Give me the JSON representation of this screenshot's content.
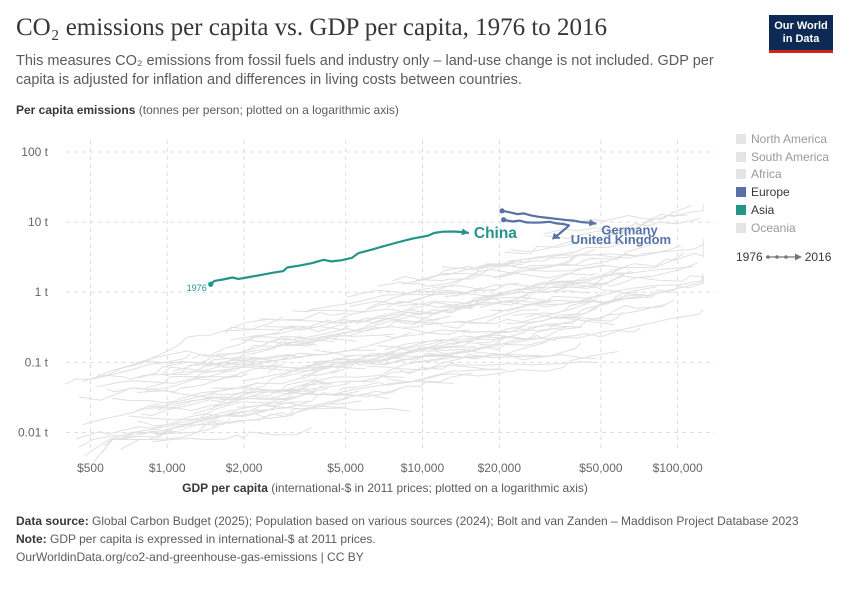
{
  "header": {
    "title": "CO₂ emissions per capita vs. GDP per capita, 1976 to 2016",
    "subtitle": "This measures CO₂ emissions from fossil fuels and industry only – land-use change is not included. GDP per capita is adjusted for inflation and differences in living costs between countries.",
    "logo_line1": "Our World",
    "logo_line2": "in Data"
  },
  "axes": {
    "y_title": "Per capita emissions",
    "y_note": "(tonnes per person; plotted on a logarithmic axis)",
    "x_title": "GDP per capita",
    "x_note": "(international-$ in 2011 prices; plotted on a logarithmic axis)"
  },
  "legend": {
    "items": [
      {
        "label": "North America",
        "color": "#e4e4e4",
        "active": false
      },
      {
        "label": "South America",
        "color": "#e4e4e4",
        "active": false
      },
      {
        "label": "Africa",
        "color": "#e4e4e4",
        "active": false
      },
      {
        "label": "Europe",
        "color": "#5772a7",
        "active": true
      },
      {
        "label": "Asia",
        "color": "#24948b",
        "active": true
      },
      {
        "label": "Oceania",
        "color": "#e4e4e4",
        "active": false
      }
    ],
    "timeline_start": "1976",
    "timeline_end": "2016"
  },
  "chart_data": {
    "type": "scatter",
    "x_scale": "log",
    "y_scale": "log",
    "xlim": [
      380,
      140000
    ],
    "ylim": [
      0.006,
      220
    ],
    "x_ticks": [
      {
        "value": 500,
        "label": "$500"
      },
      {
        "value": 1000,
        "label": "$1,000"
      },
      {
        "value": 2000,
        "label": "$2,000"
      },
      {
        "value": 5000,
        "label": "$5,000"
      },
      {
        "value": 10000,
        "label": "$10,000"
      },
      {
        "value": 20000,
        "label": "$20,000"
      },
      {
        "value": 50000,
        "label": "$50,000"
      },
      {
        "value": 100000,
        "label": "$100,000"
      }
    ],
    "y_ticks": [
      {
        "value": 0.01,
        "label": "0.01 t"
      },
      {
        "value": 0.1,
        "label": "0.1 t"
      },
      {
        "value": 1,
        "label": "1 t"
      },
      {
        "value": 10,
        "label": "10 t"
      },
      {
        "value": 100,
        "label": "100 t"
      }
    ],
    "grid": true,
    "legend_position": "right",
    "series": [
      {
        "name": "China",
        "color": "#24948b",
        "start_label": "1976",
        "points": [
          [
            1480,
            1.3
          ],
          [
            1530,
            1.45
          ],
          [
            1650,
            1.52
          ],
          [
            1800,
            1.62
          ],
          [
            1900,
            1.55
          ],
          [
            2050,
            1.62
          ],
          [
            2300,
            1.75
          ],
          [
            2600,
            1.9
          ],
          [
            2850,
            2.0
          ],
          [
            2950,
            2.25
          ],
          [
            3300,
            2.4
          ],
          [
            3700,
            2.6
          ],
          [
            4100,
            2.9
          ],
          [
            4400,
            2.75
          ],
          [
            4800,
            2.85
          ],
          [
            5300,
            3.1
          ],
          [
            5600,
            3.6
          ],
          [
            6400,
            4.1
          ],
          [
            7000,
            4.5
          ],
          [
            7700,
            4.95
          ],
          [
            8400,
            5.4
          ],
          [
            9100,
            5.8
          ],
          [
            9800,
            6.1
          ],
          [
            10500,
            6.4
          ],
          [
            11100,
            7.0
          ],
          [
            12000,
            7.3
          ],
          [
            13200,
            7.35
          ],
          [
            14500,
            7.2
          ],
          [
            15200,
            7.0
          ]
        ]
      },
      {
        "name": "Germany",
        "color": "#5772a7",
        "points": [
          [
            20500,
            14.5
          ],
          [
            22000,
            13.8
          ],
          [
            23500,
            13.0
          ],
          [
            25000,
            13.3
          ],
          [
            26500,
            12.5
          ],
          [
            28500,
            11.9
          ],
          [
            31000,
            11.5
          ],
          [
            33000,
            11.2
          ],
          [
            36000,
            10.8
          ],
          [
            39000,
            10.5
          ],
          [
            42000,
            10.0
          ],
          [
            45000,
            9.8
          ],
          [
            48000,
            9.5
          ]
        ]
      },
      {
        "name": "United Kingdom",
        "color": "#5772a7",
        "points": [
          [
            20800,
            10.8
          ],
          [
            22500,
            10.2
          ],
          [
            24000,
            10.5
          ],
          [
            25500,
            9.9
          ],
          [
            27500,
            9.8
          ],
          [
            29500,
            9.9
          ],
          [
            31500,
            10.1
          ],
          [
            33500,
            9.6
          ],
          [
            35500,
            9.4
          ],
          [
            37500,
            9.0
          ],
          [
            36500,
            8.2
          ],
          [
            35000,
            7.2
          ],
          [
            34000,
            6.6
          ],
          [
            33000,
            6.2
          ],
          [
            34500,
            5.9
          ]
        ]
      }
    ]
  },
  "footer": {
    "source_label": "Data source:",
    "source_text": "Global Carbon Budget (2025); Population based on various sources (2024); Bolt and van Zanden – Maddison Project Database 2023",
    "note_label": "Note:",
    "note_text": "GDP per capita is expressed in international-$ at 2011 prices.",
    "url": "OurWorldinData.org/co2-and-greenhouse-gas-emissions | CC BY"
  }
}
